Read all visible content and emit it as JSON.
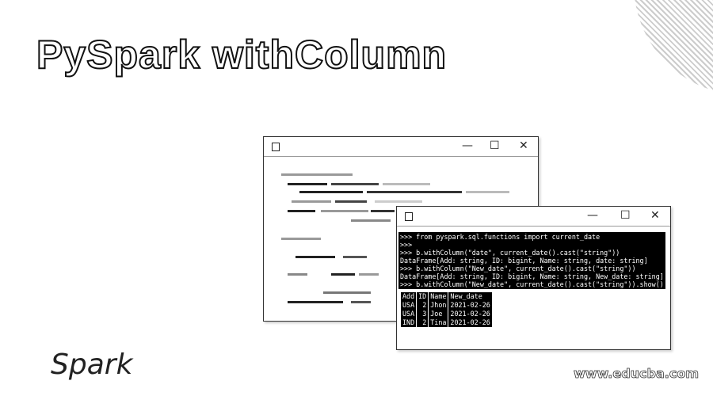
{
  "header": {
    "title": "PySpark withColumn"
  },
  "code": {
    "lines": [
      ">>> from pyspark.sql.functions import current_date",
      ">>>",
      ">>> b.withColumn(\"date\", current_date().cast(\"string\"))",
      "DataFrame[Add: string, ID: bigint, Name: string, date: string]",
      ">>> b.withColumn(\"New_date\", current_date().cast(\"string\"))",
      "DataFrame[Add: string, ID: bigint, Name: string, New_date: string]",
      ">>> b.withColumn(\"New_date\", current_date().cast(\"string\")).show()"
    ]
  },
  "table": {
    "header": [
      "Add",
      "ID",
      "Name",
      "New_date"
    ],
    "rows": [
      [
        "USA",
        2,
        "Jhon",
        "2021-02-26"
      ],
      [
        "USA",
        3,
        "Joe",
        "2021-02-26"
      ],
      [
        "IND",
        2,
        "Tina",
        "2021-02-26"
      ]
    ]
  },
  "logo": "Spark",
  "watermark": "www.educba.com"
}
